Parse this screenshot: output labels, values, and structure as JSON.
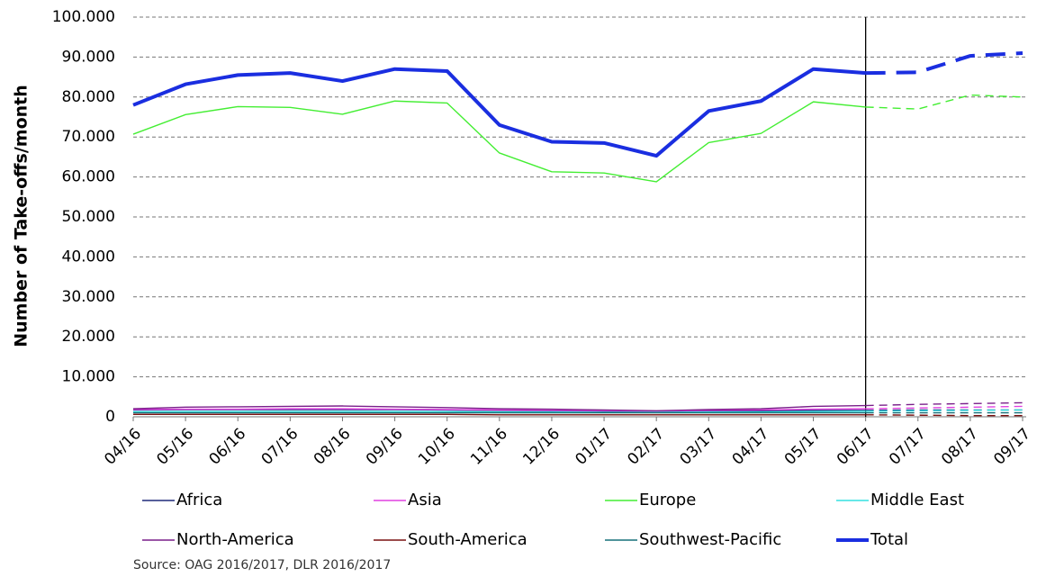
{
  "chart_data": {
    "type": "line",
    "y_label": "Number of Take-offs/month",
    "source": "Source: OAG 2016/2017, DLR 2016/2017",
    "categories": [
      "04/16",
      "05/16",
      "06/16",
      "07/16",
      "08/16",
      "09/16",
      "10/16",
      "11/16",
      "12/16",
      "01/17",
      "02/17",
      "03/17",
      "04/17",
      "05/17",
      "06/17",
      "07/17",
      "08/17",
      "09/17"
    ],
    "vline_at": "06/17",
    "ylim": [
      0,
      100000
    ],
    "yticks": [
      0,
      {
        "value": 10000,
        "label": "10.000"
      },
      {
        "value": 20000,
        "label": "20.000"
      },
      {
        "value": 30000,
        "label": "30.000"
      },
      {
        "value": 40000,
        "label": "40.000"
      },
      {
        "value": 50000,
        "label": "50.000"
      },
      {
        "value": 60000,
        "label": "60.000"
      },
      {
        "value": 70000,
        "label": "70.000"
      },
      {
        "value": 80000,
        "label": "80.000"
      },
      {
        "value": 90000,
        "label": "90.000"
      },
      {
        "value": 100000,
        "label": "100.000"
      }
    ],
    "grid": true,
    "series": [
      {
        "name": "Africa",
        "color": "#1f2a7a",
        "values": [
          1700,
          1800,
          1800,
          1800,
          1800,
          1800,
          1700,
          1600,
          1500,
          1400,
          1300,
          1400,
          1500,
          1600,
          1600,
          1700,
          1700,
          1700
        ]
      },
      {
        "name": "Asia",
        "color": "#e040e0",
        "values": [
          1800,
          1900,
          1900,
          2000,
          2000,
          1900,
          1800,
          1700,
          1600,
          1500,
          1400,
          1600,
          1700,
          1900,
          2000,
          2200,
          2400,
          2600
        ]
      },
      {
        "name": "Europe",
        "color": "#44ee33",
        "values": [
          70700,
          75600,
          77600,
          77400,
          75700,
          79000,
          78500,
          66000,
          61300,
          61000,
          58800,
          68600,
          70900,
          78800,
          77500,
          77000,
          80500,
          80000
        ]
      },
      {
        "name": "Middle East",
        "color": "#33e0e0",
        "values": [
          1300,
          1300,
          1300,
          1300,
          1300,
          1300,
          1300,
          1200,
          1200,
          1100,
          1100,
          1200,
          1200,
          1300,
          1400,
          1500,
          1600,
          1700
        ]
      },
      {
        "name": "North-America",
        "color": "#7a1f8a",
        "values": [
          2000,
          2400,
          2500,
          2600,
          2700,
          2500,
          2300,
          2000,
          1900,
          1700,
          1500,
          1800,
          2000,
          2600,
          2800,
          3100,
          3300,
          3500
        ]
      },
      {
        "name": "South-America",
        "color": "#7a1010",
        "values": [
          600,
          600,
          600,
          600,
          600,
          600,
          600,
          500,
          500,
          500,
          500,
          500,
          500,
          500,
          500,
          400,
          300,
          300
        ]
      },
      {
        "name": "Southwest-Pacific",
        "color": "#16707a",
        "values": [
          1000,
          1000,
          1000,
          1000,
          1000,
          1000,
          1000,
          1000,
          1000,
          1000,
          1000,
          1000,
          1000,
          1000,
          1000,
          1000,
          1000,
          1000
        ]
      },
      {
        "name": "Total",
        "color": "#1a2ee0",
        "values": [
          78000,
          83200,
          85500,
          86000,
          84000,
          87000,
          86500,
          73000,
          68800,
          68500,
          65300,
          76500,
          79000,
          87000,
          86000,
          86200,
          90300,
          91000
        ]
      }
    ]
  }
}
